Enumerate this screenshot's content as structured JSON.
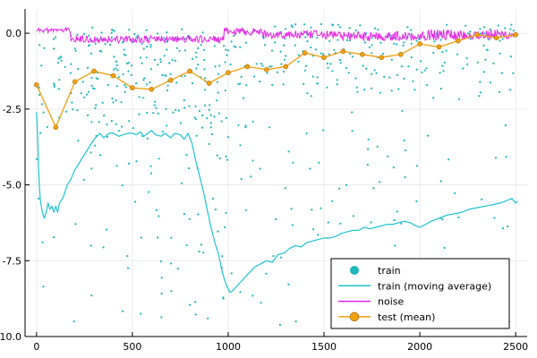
{
  "chart_data": {
    "type": "scatter",
    "title": "",
    "xlabel": "",
    "ylabel": "",
    "xlim": [
      -60,
      2560
    ],
    "ylim": [
      -10.0,
      0.8
    ],
    "grid": true,
    "legend_position": "bottom-right",
    "x_ticks": [
      {
        "value": 0,
        "label": "0"
      },
      {
        "value": 500,
        "label": "500"
      },
      {
        "value": 1000,
        "label": "1000"
      },
      {
        "value": 1500,
        "label": "1500"
      },
      {
        "value": 2000,
        "label": "2000"
      },
      {
        "value": 2500,
        "label": "2500"
      }
    ],
    "y_ticks": [
      {
        "value": 0.0,
        "label": "0.0"
      },
      {
        "value": -2.5,
        "label": "-2.5"
      },
      {
        "value": -5.0,
        "label": "-5.0"
      },
      {
        "value": -7.5,
        "label": "-7.5"
      },
      {
        "value": -10.0,
        "label": "-10.0"
      }
    ],
    "colors": {
      "train": "#1fb8b8",
      "moving_average": "#1fc4d0",
      "noise": "#e628e6",
      "test": "#f0a010"
    },
    "series": [
      {
        "name": "train",
        "kind": "scatter",
        "color": "#1fb8b8",
        "x_range": [
          0,
          2500
        ],
        "n_points": 1250,
        "bands": [
          {
            "x": [
              0,
              1000
            ],
            "y": [
              -3.5,
              0.2
            ],
            "weight": 0.58
          },
          {
            "x": [
              0,
              1000
            ],
            "y": [
              -10.0,
              0.2
            ],
            "weight": 0.42
          },
          {
            "x": [
              1000,
              2500
            ],
            "y": [
              -2.0,
              0.3
            ],
            "weight": 0.55
          },
          {
            "x": [
              1000,
              2500
            ],
            "y": [
              -10.0,
              0.3
            ],
            "weight": 0.45
          }
        ]
      },
      {
        "name": "train (moving average)",
        "kind": "line",
        "color": "#1fc4d0",
        "points": [
          [
            0,
            -2.6
          ],
          [
            5,
            -3.3
          ],
          [
            10,
            -4.4
          ],
          [
            15,
            -5.1
          ],
          [
            20,
            -5.5
          ],
          [
            30,
            -5.9
          ],
          [
            40,
            -6.1
          ],
          [
            50,
            -5.9
          ],
          [
            60,
            -5.6
          ],
          [
            70,
            -5.8
          ],
          [
            80,
            -5.7
          ],
          [
            90,
            -5.9
          ],
          [
            100,
            -5.7
          ],
          [
            110,
            -5.9
          ],
          [
            120,
            -5.6
          ],
          [
            140,
            -5.4
          ],
          [
            160,
            -5.0
          ],
          [
            180,
            -4.8
          ],
          [
            200,
            -4.5
          ],
          [
            220,
            -4.3
          ],
          [
            250,
            -4.0
          ],
          [
            280,
            -3.7
          ],
          [
            300,
            -3.5
          ],
          [
            330,
            -3.3
          ],
          [
            350,
            -3.45
          ],
          [
            380,
            -3.3
          ],
          [
            400,
            -3.3
          ],
          [
            430,
            -3.4
          ],
          [
            450,
            -3.35
          ],
          [
            480,
            -3.3
          ],
          [
            500,
            -3.3
          ],
          [
            520,
            -3.35
          ],
          [
            540,
            -3.25
          ],
          [
            560,
            -3.4
          ],
          [
            580,
            -3.3
          ],
          [
            600,
            -3.2
          ],
          [
            620,
            -3.35
          ],
          [
            650,
            -3.4
          ],
          [
            670,
            -3.3
          ],
          [
            700,
            -3.45
          ],
          [
            720,
            -3.3
          ],
          [
            750,
            -3.35
          ],
          [
            770,
            -3.5
          ],
          [
            790,
            -3.3
          ],
          [
            810,
            -3.6
          ],
          [
            830,
            -4.2
          ],
          [
            850,
            -4.7
          ],
          [
            870,
            -5.2
          ],
          [
            890,
            -5.8
          ],
          [
            910,
            -6.4
          ],
          [
            930,
            -6.9
          ],
          [
            950,
            -7.3
          ],
          [
            970,
            -7.9
          ],
          [
            990,
            -8.3
          ],
          [
            1010,
            -8.55
          ],
          [
            1030,
            -8.45
          ],
          [
            1050,
            -8.3
          ],
          [
            1080,
            -8.1
          ],
          [
            1110,
            -7.9
          ],
          [
            1140,
            -7.7
          ],
          [
            1170,
            -7.6
          ],
          [
            1200,
            -7.5
          ],
          [
            1230,
            -7.55
          ],
          [
            1260,
            -7.3
          ],
          [
            1290,
            -7.25
          ],
          [
            1320,
            -7.1
          ],
          [
            1350,
            -7.0
          ],
          [
            1380,
            -7.05
          ],
          [
            1410,
            -6.9
          ],
          [
            1440,
            -6.85
          ],
          [
            1470,
            -6.8
          ],
          [
            1500,
            -6.75
          ],
          [
            1530,
            -6.75
          ],
          [
            1560,
            -6.7
          ],
          [
            1590,
            -6.6
          ],
          [
            1620,
            -6.55
          ],
          [
            1650,
            -6.5
          ],
          [
            1680,
            -6.5
          ],
          [
            1710,
            -6.4
          ],
          [
            1740,
            -6.45
          ],
          [
            1770,
            -6.4
          ],
          [
            1800,
            -6.35
          ],
          [
            1830,
            -6.3
          ],
          [
            1860,
            -6.3
          ],
          [
            1890,
            -6.25
          ],
          [
            1920,
            -6.2
          ],
          [
            1950,
            -6.25
          ],
          [
            1980,
            -6.35
          ],
          [
            2000,
            -6.4
          ],
          [
            2030,
            -6.3
          ],
          [
            2060,
            -6.2
          ],
          [
            2100,
            -6.1
          ],
          [
            2140,
            -6.0
          ],
          [
            2180,
            -5.95
          ],
          [
            2220,
            -5.9
          ],
          [
            2260,
            -5.8
          ],
          [
            2300,
            -5.75
          ],
          [
            2340,
            -5.7
          ],
          [
            2380,
            -5.65
          ],
          [
            2420,
            -5.6
          ],
          [
            2460,
            -5.5
          ],
          [
            2480,
            -5.45
          ],
          [
            2500,
            -5.6
          ],
          [
            2510,
            -5.55
          ]
        ]
      },
      {
        "name": "noise",
        "kind": "line",
        "color": "#e628e6",
        "segments": [
          {
            "x": [
              0,
              180
            ],
            "level": 0.1,
            "jitter": 0.08
          },
          {
            "x": [
              180,
              980
            ],
            "level": -0.2,
            "jitter": 0.12
          },
          {
            "x": [
              980,
              1180
            ],
            "level": 0.05,
            "jitter": 0.12
          },
          {
            "x": [
              1180,
              1600
            ],
            "level": -0.05,
            "jitter": 0.14
          },
          {
            "x": [
              1600,
              2000
            ],
            "level": -0.1,
            "jitter": 0.16
          },
          {
            "x": [
              2000,
              2500
            ],
            "level": -0.05,
            "jitter": 0.18
          }
        ]
      },
      {
        "name": "test (mean)",
        "kind": "line-markers",
        "color": "#f0a010",
        "points": [
          [
            0,
            -1.7
          ],
          [
            100,
            -3.1
          ],
          [
            200,
            -1.6
          ],
          [
            300,
            -1.25
          ],
          [
            400,
            -1.4
          ],
          [
            500,
            -1.8
          ],
          [
            600,
            -1.85
          ],
          [
            700,
            -1.55
          ],
          [
            800,
            -1.25
          ],
          [
            900,
            -1.65
          ],
          [
            1000,
            -1.3
          ],
          [
            1100,
            -1.1
          ],
          [
            1200,
            -1.2
          ],
          [
            1300,
            -1.1
          ],
          [
            1400,
            -0.65
          ],
          [
            1500,
            -0.8
          ],
          [
            1600,
            -0.6
          ],
          [
            1700,
            -0.7
          ],
          [
            1800,
            -0.8
          ],
          [
            1900,
            -0.7
          ],
          [
            2000,
            -0.35
          ],
          [
            2100,
            -0.45
          ],
          [
            2200,
            -0.25
          ],
          [
            2300,
            -0.05
          ],
          [
            2400,
            -0.15
          ],
          [
            2500,
            -0.05
          ]
        ]
      }
    ],
    "legend": [
      {
        "label": "train",
        "marker": "dot"
      },
      {
        "label": "train (moving average)",
        "marker": "line"
      },
      {
        "label": "noise",
        "marker": "line"
      },
      {
        "label": "test (mean)",
        "marker": "line-dot"
      }
    ]
  }
}
